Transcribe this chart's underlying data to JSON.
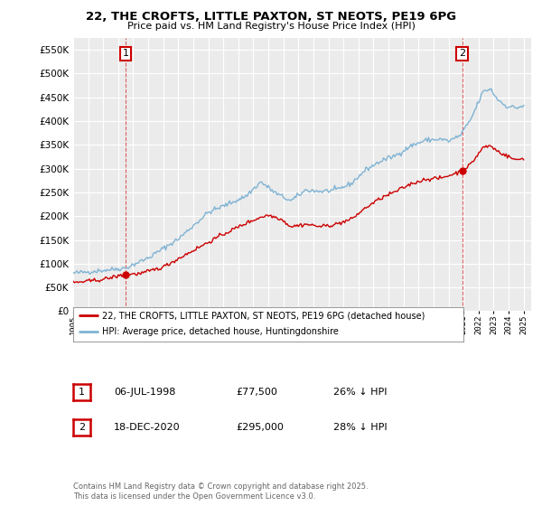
{
  "title_line1": "22, THE CROFTS, LITTLE PAXTON, ST NEOTS, PE19 6PG",
  "title_line2": "Price paid vs. HM Land Registry's House Price Index (HPI)",
  "sale1_date": "06-JUL-1998",
  "sale1_price": 77500,
  "sale1_hpi_diff": "26% ↓ HPI",
  "sale2_date": "18-DEC-2020",
  "sale2_price": 295000,
  "sale2_hpi_diff": "28% ↓ HPI",
  "legend_line1": "22, THE CROFTS, LITTLE PAXTON, ST NEOTS, PE19 6PG (detached house)",
  "legend_line2": "HPI: Average price, detached house, Huntingdonshire",
  "footer": "Contains HM Land Registry data © Crown copyright and database right 2025.\nThis data is licensed under the Open Government Licence v3.0.",
  "red_color": "#cc0000",
  "blue_color": "#7fb3d3",
  "annotation_box_color": "#cc0000",
  "ylim_max": 575000,
  "ylim_min": 0,
  "bg_color": "#ebebeb"
}
